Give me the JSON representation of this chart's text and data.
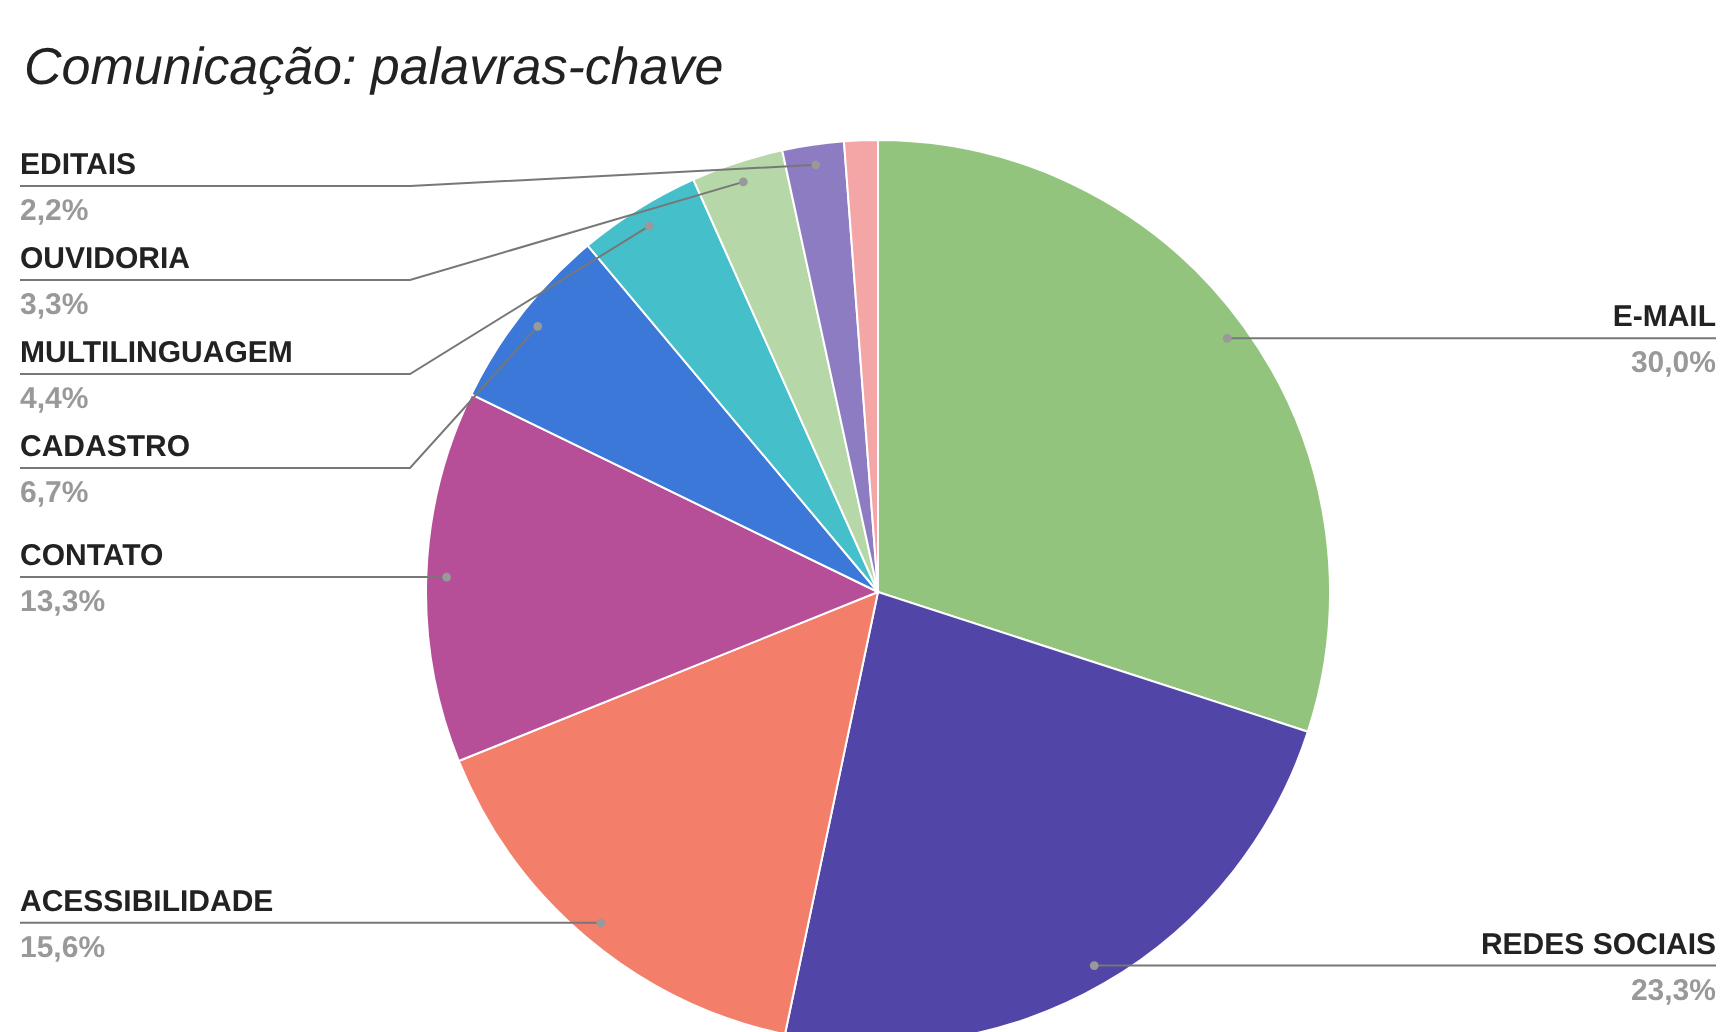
{
  "chart_data": {
    "type": "pie",
    "title": "Comunicação: palavras-chave",
    "categories": [
      "E-MAIL",
      "REDES SOCIAIS",
      "ACESSIBILIDADE",
      "CONTATO",
      "CADASTRO",
      "MULTILINGUAGEM",
      "OUVIDORIA",
      "EDITAIS",
      null
    ],
    "values": [
      30.0,
      23.3,
      15.6,
      13.3,
      6.7,
      4.4,
      3.3,
      2.2,
      1.2
    ],
    "value_labels": [
      "30,0%",
      "23,3%",
      "15,6%",
      "13,3%",
      "6,7%",
      "4,4%",
      "3,3%",
      "2,2%",
      null
    ],
    "colors": [
      "#93c47d",
      "#5145a8",
      "#f37f6b",
      "#b74f98",
      "#3c78d8",
      "#45bfc9",
      "#b6d7a8",
      "#8e7cc3",
      "#f4a6a6"
    ]
  }
}
